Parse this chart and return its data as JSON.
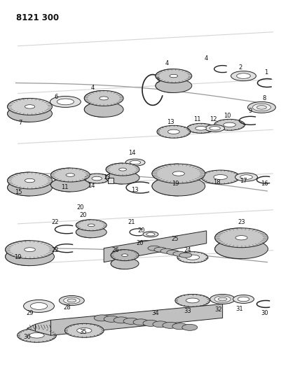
{
  "title": "8121 300",
  "bg_color": "#ffffff",
  "lc": "#222222",
  "figsize": [
    4.11,
    5.33
  ],
  "dpi": 100
}
